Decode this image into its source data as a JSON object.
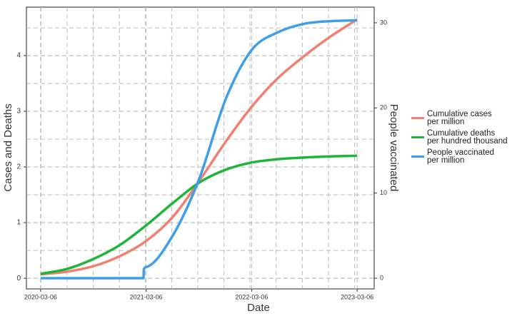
{
  "chart_data": {
    "type": "line",
    "xlabel": "Date",
    "ylabel": "Cases and Deaths",
    "y2label": "People vaccinated",
    "xlim": [
      "2020-01-17",
      "2023-05-04"
    ],
    "xticks": [
      "2020-03-06",
      "2021-03-06",
      "2022-03-06",
      "2023-03-06"
    ],
    "ylim": [
      -0.19,
      4.87
    ],
    "yticks": [
      0,
      1,
      2,
      3,
      4
    ],
    "y2lim": [
      -1.26,
      31.84
    ],
    "y2ticks": [
      0,
      10,
      20,
      30
    ],
    "grid": true,
    "series": [
      {
        "name": "Cumulative cases\nper million",
        "color": "#f08070",
        "x": [
          "2020-03-06",
          "2020-06-06",
          "2020-09-06",
          "2020-12-06",
          "2021-03-06",
          "2021-06-06",
          "2021-09-06",
          "2021-12-06",
          "2022-03-06",
          "2022-06-06",
          "2022-09-06",
          "2022-12-06",
          "2023-03-06"
        ],
        "values": [
          0.07,
          0.12,
          0.22,
          0.4,
          0.67,
          1.1,
          1.75,
          2.45,
          3.08,
          3.6,
          4.0,
          4.35,
          4.65
        ]
      },
      {
        "name": "Cumulative deaths\nper hundred thousand",
        "color": "#1fb43a",
        "x": [
          "2020-03-06",
          "2020-06-06",
          "2020-09-06",
          "2020-12-06",
          "2021-03-06",
          "2021-06-06",
          "2021-09-06",
          "2021-12-06",
          "2022-03-06",
          "2022-06-06",
          "2022-09-06",
          "2022-12-06",
          "2023-03-06"
        ],
        "values": [
          0.08,
          0.17,
          0.35,
          0.6,
          0.95,
          1.35,
          1.72,
          1.95,
          2.08,
          2.14,
          2.17,
          2.19,
          2.2
        ]
      },
      {
        "name": "People vaccinated\nper million",
        "color": "#3f9ee8",
        "axis": "y2",
        "x": [
          "2020-03-06",
          "2021-02-25",
          "2021-02-26",
          "2021-03-06",
          "2021-06-06",
          "2021-09-06",
          "2021-12-06",
          "2022-03-06",
          "2022-06-06",
          "2022-09-06",
          "2022-12-06",
          "2023-03-06"
        ],
        "values": [
          0,
          0,
          1.0,
          1.3,
          5,
          11.7,
          21,
          26.8,
          28.9,
          29.9,
          30.2,
          30.3
        ]
      }
    ]
  }
}
